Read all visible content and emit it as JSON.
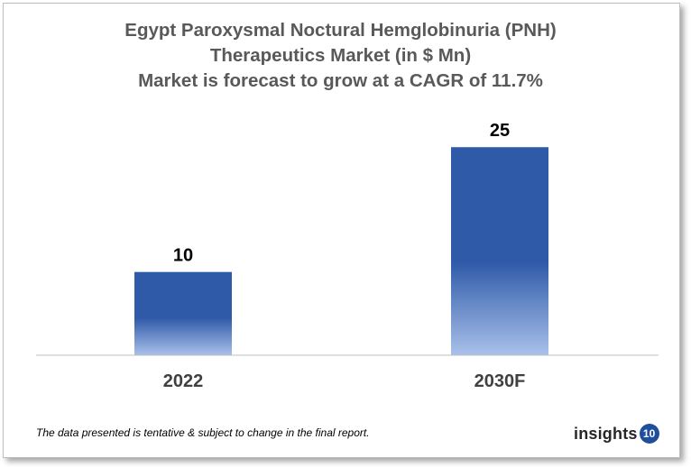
{
  "title_lines": [
    "Egypt Paroxysmal Noctural Hemglobinuria (PNH)",
    "Therapeutics Market  (in $ Mn)",
    "Market is forecast to grow at a CAGR of 11.7%"
  ],
  "footnote": "The data presented is tentative & subject to change in the final report.",
  "logo": {
    "text": "insights",
    "badge": "10"
  },
  "colors": {
    "bar_top": "#2f5aa8",
    "bar_bottom": "#a9c0ea",
    "axis": "#bfbfbf",
    "title": "#595959"
  },
  "chart_data": {
    "type": "bar",
    "title": "Egypt Paroxysmal Noctural Hemglobinuria (PNH) Therapeutics Market  (in $ Mn)",
    "subtitle": "Market is forecast to grow at a CAGR of 11.7%",
    "categories": [
      "2022",
      "2030F"
    ],
    "values": [
      10,
      25
    ],
    "data_labels": [
      "10",
      "25"
    ],
    "xlabel": "",
    "ylabel": "",
    "ylim": [
      0,
      28.6
    ],
    "grid": false,
    "legend": "none"
  }
}
